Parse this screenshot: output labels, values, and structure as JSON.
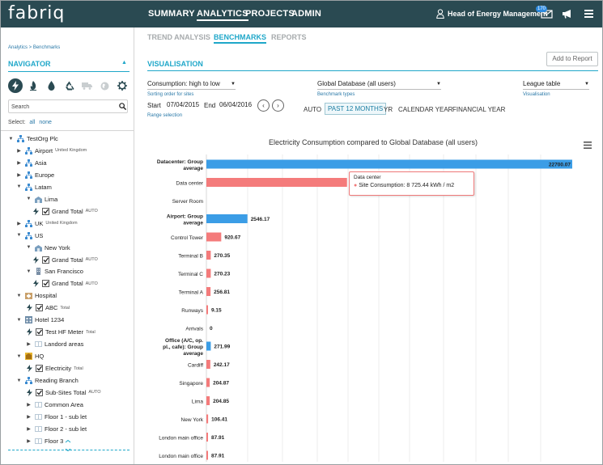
{
  "app": {
    "logo": "fabriq",
    "user": "Head of Energy Management",
    "mail_count": "170"
  },
  "topnav": {
    "summary": "SUMMARY",
    "analytics": "ANALYTICS",
    "projects": "PROJECTS",
    "admin": "ADMIN"
  },
  "subnav": {
    "trend": "TREND ANALYSIS",
    "benchmarks": "BENCHMARKS",
    "reports": "REPORTS"
  },
  "sidebar": {
    "breadcrumb": "Analytics > Benchmarks",
    "title": "NAVIGATOR",
    "search_placeholder": "Search",
    "select_label": "Select:",
    "select_all": "all",
    "select_none": "none"
  },
  "tree": [
    {
      "label": "TestOrg Plc",
      "sub": "",
      "level": 0,
      "type": "org",
      "arrow": "open"
    },
    {
      "label": "Airport",
      "sub": "United Kingdom",
      "level": 1,
      "type": "org",
      "arrow": "closed"
    },
    {
      "label": "Asia",
      "sub": "",
      "level": 1,
      "type": "org",
      "arrow": "closed"
    },
    {
      "label": "Europe",
      "sub": "",
      "level": 1,
      "type": "org",
      "arrow": "closed"
    },
    {
      "label": "Latam",
      "sub": "",
      "level": 1,
      "type": "org",
      "arrow": "open"
    },
    {
      "label": "Lima",
      "sub": "",
      "level": 2,
      "type": "building",
      "arrow": "open"
    },
    {
      "label": "Grand Total",
      "sub": "AUTO",
      "level": 3,
      "type": "meter",
      "arrow": ""
    },
    {
      "label": "UK",
      "sub": "United Kingdom",
      "level": 1,
      "type": "org",
      "arrow": "closed"
    },
    {
      "label": "US",
      "sub": "",
      "level": 1,
      "type": "org",
      "arrow": "open"
    },
    {
      "label": "New York",
      "sub": "",
      "level": 2,
      "type": "building",
      "arrow": "open"
    },
    {
      "label": "Grand Total",
      "sub": "AUTO",
      "level": 3,
      "type": "meter",
      "arrow": ""
    },
    {
      "label": "San Francisco",
      "sub": "",
      "level": 2,
      "type": "tower",
      "arrow": "open"
    },
    {
      "label": "Grand Total",
      "sub": "AUTO",
      "level": 3,
      "type": "meter",
      "arrow": ""
    },
    {
      "label": "Hospital",
      "sub": "",
      "level": 1,
      "type": "hospital",
      "arrow": "open"
    },
    {
      "label": "ABC",
      "sub": "Total",
      "level": 2,
      "type": "meter",
      "arrow": ""
    },
    {
      "label": "Hotel 1234",
      "sub": "",
      "level": 1,
      "type": "hotel",
      "arrow": "open"
    },
    {
      "label": "Test HF Meter",
      "sub": "Total",
      "level": 2,
      "type": "meter",
      "arrow": ""
    },
    {
      "label": "Landord areas",
      "sub": "",
      "level": 2,
      "type": "area",
      "arrow": "closed"
    },
    {
      "label": "HQ",
      "sub": "",
      "level": 1,
      "type": "hq",
      "arrow": "open"
    },
    {
      "label": "Electricity",
      "sub": "Total",
      "level": 2,
      "type": "meter",
      "arrow": ""
    },
    {
      "label": "Reading Branch",
      "sub": "",
      "level": 1,
      "type": "org",
      "arrow": "open"
    },
    {
      "label": "Sub-Sites Total",
      "sub": "AUTO",
      "level": 2,
      "type": "meter",
      "arrow": ""
    },
    {
      "label": "Common Area",
      "sub": "",
      "level": 2,
      "type": "area",
      "arrow": "closed"
    },
    {
      "label": "Floor 1 - sub let",
      "sub": "",
      "level": 2,
      "type": "area",
      "arrow": "closed"
    },
    {
      "label": "Floor 2 - sub let",
      "sub": "",
      "level": 2,
      "type": "area",
      "arrow": "closed"
    },
    {
      "label": "Floor 3",
      "sub": "",
      "level": 2,
      "type": "area",
      "arrow": "closed"
    }
  ],
  "visualisation": {
    "title": "VISUALISATION",
    "add_report": "Add to Report",
    "sort_value": "Consumption: high to low",
    "sort_hint": "Sorting order for sites",
    "bench_value": "Global Database (all users)",
    "bench_hint": "Benchmark types",
    "vis_value": "League table",
    "vis_hint": "Visualisation",
    "start_label": "Start",
    "start_value": "07/04/2015",
    "end_label": "End",
    "end_value": "06/04/2016",
    "range_hint": "Range selection",
    "prev_icon": "‹",
    "next_icon": "›",
    "periods": [
      "AUTO",
      "PAST 12 MONTHS",
      "YR",
      "CALENDAR YEAR",
      "FINANCIAL YEAR"
    ]
  },
  "colors": {
    "primary": "#2a4a52",
    "accent": "#1fa7c9",
    "bar_group": "#3b9de6",
    "bar_site": "#f47b7b"
  },
  "chart_data": {
    "type": "bar",
    "orientation": "horizontal",
    "title": "Electricity Consumption compared to Global Database (all users)",
    "xlim": [
      0,
      22700.07
    ],
    "categories": [
      "Datacenter: Group average",
      "Data center",
      "Server Room",
      "Airport: Group average",
      "Control Tower",
      "Terminal B",
      "Terminal C",
      "Terminal A",
      "Runways",
      "Arrivals",
      "Office (A/C, op. pl., cafe): Group average",
      "Cardiff",
      "Singapore",
      "Lima",
      "New York",
      "London main office",
      "London main office"
    ],
    "values": [
      22700.07,
      8725.44,
      null,
      2546.17,
      920.67,
      270.35,
      270.23,
      256.81,
      9.15,
      0,
      271.99,
      242.17,
      204.87,
      204.85,
      106.41,
      87.91,
      87.91
    ],
    "labels": [
      "22700.07",
      "",
      "",
      "2546.17",
      "920.67",
      "270.35",
      "270.23",
      "256.81",
      "9.15",
      "0",
      "271.99",
      "242.17",
      "204.87",
      "204.85",
      "106.41",
      "87.91",
      "87.91"
    ],
    "group": [
      true,
      false,
      false,
      true,
      false,
      false,
      false,
      false,
      false,
      false,
      true,
      false,
      false,
      false,
      false,
      false,
      false
    ],
    "tooltip": {
      "name": "Data center",
      "text": "Site Consumption: 8 725.44 kWh / m2"
    }
  }
}
